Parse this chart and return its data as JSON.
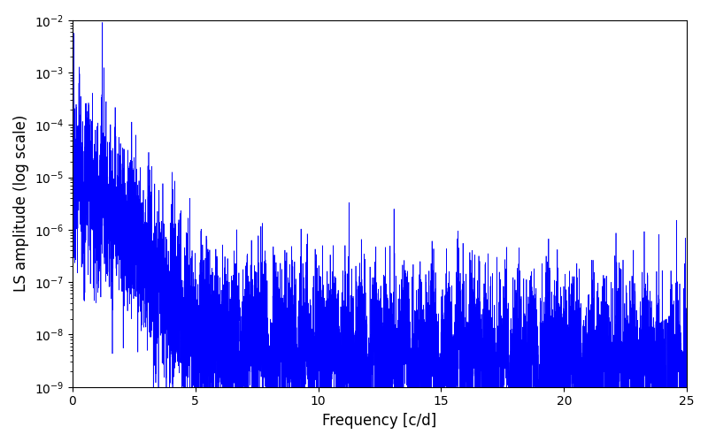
{
  "title": "",
  "xlabel": "Frequency [c/d]",
  "ylabel": "LS amplitude (log scale)",
  "xlim": [
    0,
    25
  ],
  "ylim": [
    1e-09,
    0.01
  ],
  "line_color": "#0000ff",
  "line_width": 0.5,
  "background_color": "#ffffff",
  "figsize": [
    8.0,
    5.0
  ],
  "dpi": 100,
  "seed": 12345,
  "n_points": 8000,
  "freq_max": 25.0
}
